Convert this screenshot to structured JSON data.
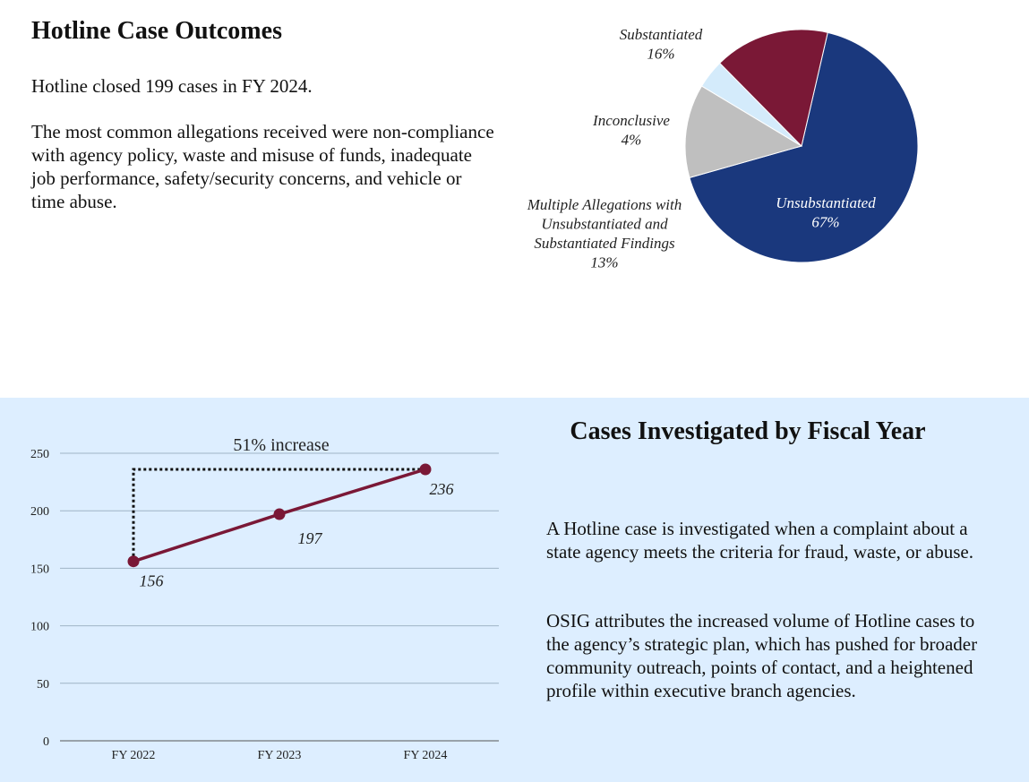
{
  "outcomes": {
    "title": "Hotline Case Outcomes",
    "summary": "Hotline closed 199 cases in FY 2024.",
    "allegations": "The most common allegations received were non-compliance with agency policy, waste and misuse of funds, inadequate job performance, safety/security concerns, and vehicle or time abuse."
  },
  "investigated": {
    "title": "Cases Investigated by Fiscal Year",
    "para1": "A Hotline case is investigated when a complaint about a state agency meets the criteria for fraud, waste, or abuse.",
    "para2": "OSIG attributes the increased volume of Hotline cases to the agency’s strategic plan, which has pushed for broader community outreach, points of contact, and a heightened profile within executive branch agencies."
  },
  "chart_data": [
    {
      "type": "pie",
      "title": "",
      "slices": [
        {
          "name": "Unsubstantiated",
          "value": 67,
          "label_lines": [
            "Unsubstantiated",
            "67%"
          ],
          "color": "#1a387d",
          "label_color": "#ffffff"
        },
        {
          "name": "Multiple Allegations with Unsubstantiated and Substantiated Findings",
          "value": 13,
          "label_lines": [
            "Multiple Allegations with",
            "Unsubstantiated and",
            "Substantiated Findings",
            "13%"
          ],
          "color": "#bfbfbf",
          "label_color": "#222222"
        },
        {
          "name": "Inconclusive",
          "value": 4,
          "label_lines": [
            "Inconclusive",
            "4%"
          ],
          "color": "#d4ebfb",
          "label_color": "#222222"
        },
        {
          "name": "Substantiated",
          "value": 16,
          "label_lines": [
            "Substantiated",
            "16%"
          ],
          "color": "#7a1836",
          "label_color": "#222222"
        }
      ]
    },
    {
      "type": "line",
      "title": "",
      "xlabel": "",
      "ylabel": "",
      "categories": [
        "FY 2022",
        "FY 2023",
        "FY 2024"
      ],
      "series": [
        {
          "name": "Cases Investigated",
          "values": [
            156,
            197,
            236
          ],
          "color": "#7a1836"
        }
      ],
      "data_labels": [
        "156",
        "197",
        "236"
      ],
      "ylim": [
        0,
        250
      ],
      "yticks": [
        0,
        50,
        100,
        150,
        200,
        250
      ],
      "grid": true,
      "annotation": "51% increase"
    }
  ]
}
